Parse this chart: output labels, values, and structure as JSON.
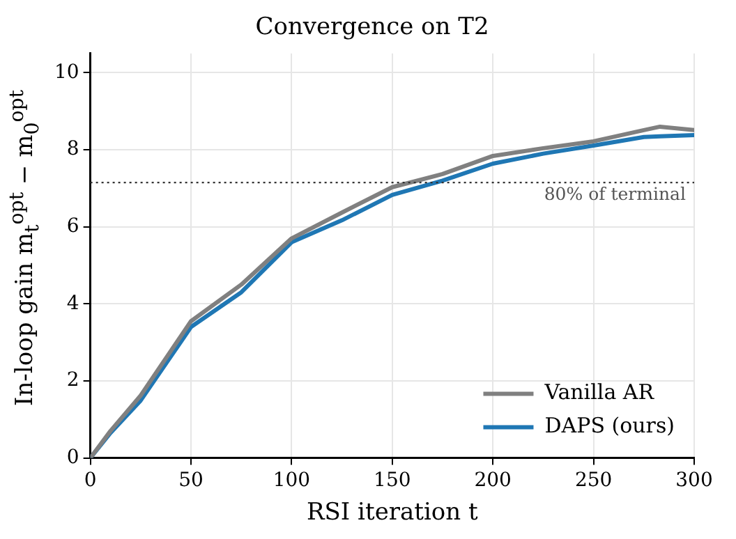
{
  "chart_data": {
    "type": "line",
    "title": "Convergence on T2",
    "xlabel": "RSI iteration t",
    "ylabel": "In-loop gain m$_{t}$$^{opt}$ − m$_{0}$$^{opt}$",
    "x": [
      0,
      10,
      25,
      50,
      75,
      100,
      125,
      150,
      175,
      200,
      225,
      250,
      275,
      283,
      300
    ],
    "series": [
      {
        "name": "Vanilla AR",
        "color": "#808080",
        "values": [
          0,
          0.7,
          1.62,
          3.55,
          4.5,
          5.7,
          6.37,
          7.03,
          7.37,
          7.84,
          8.04,
          8.22,
          8.51,
          8.6,
          8.51
        ]
      },
      {
        "name": "DAPS (ours)",
        "color": "#1f77b4",
        "values": [
          0,
          0.65,
          1.49,
          3.4,
          4.3,
          5.6,
          6.17,
          6.83,
          7.2,
          7.64,
          7.9,
          8.11,
          8.33,
          8.35,
          8.38
        ]
      }
    ],
    "xlim": [
      0,
      300
    ],
    "xticks": [
      0,
      50,
      100,
      150,
      200,
      250,
      300
    ],
    "ylim": [
      0,
      10.5
    ],
    "yticks": [
      0,
      2,
      4,
      6,
      8,
      10
    ],
    "ref_lines": [
      {
        "axis": "y",
        "value": 7.15,
        "label": "80% of terminal",
        "color": "#333333",
        "line_style": "dotted"
      }
    ],
    "grid": true,
    "legend": "bottom right",
    "marker": "none",
    "line_style": "solid"
  }
}
